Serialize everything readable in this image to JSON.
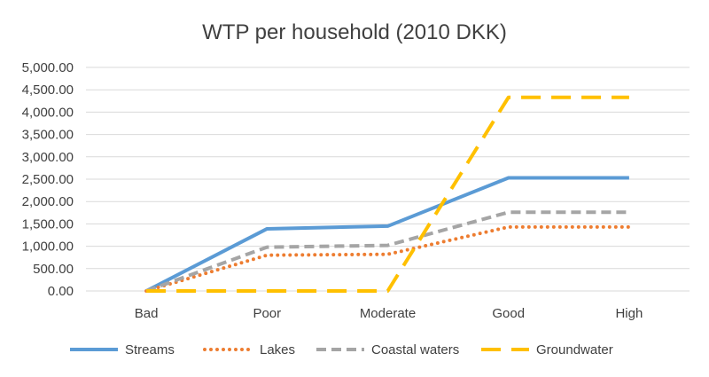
{
  "chart_data": {
    "type": "line",
    "title": "WTP per household  (2010 DKK)",
    "xlabel": "",
    "ylabel": "",
    "categories": [
      "Bad",
      "Poor",
      "Moderate",
      "Good",
      "High"
    ],
    "y_ticks": [
      "0.00",
      "500.00",
      "1,000.00",
      "1,500.00",
      "2,000.00",
      "2,500.00",
      "3,000.00",
      "3,500.00",
      "4,000.00",
      "4,500.00",
      "5,000.00"
    ],
    "ylim": [
      0,
      5000
    ],
    "grid": true,
    "legend_position": "bottom",
    "series": [
      {
        "name": "Streams",
        "values": [
          0,
          1390,
          1450,
          2530,
          2530
        ],
        "color": "#5b9bd5",
        "style": "solid"
      },
      {
        "name": "Lakes",
        "values": [
          0,
          800,
          820,
          1430,
          1430
        ],
        "color": "#ed7d31",
        "style": "dotted"
      },
      {
        "name": "Coastal waters",
        "values": [
          0,
          980,
          1020,
          1760,
          1760
        ],
        "color": "#a5a5a5",
        "style": "dashed"
      },
      {
        "name": "Groundwater",
        "values": [
          0,
          0,
          0,
          4330,
          4330
        ],
        "color": "#ffc000",
        "style": "long-dashed"
      }
    ]
  }
}
